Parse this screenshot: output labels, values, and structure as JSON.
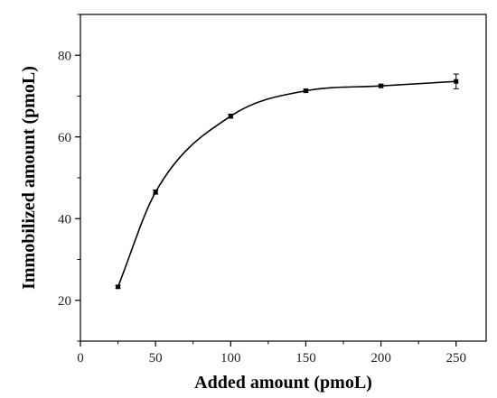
{
  "chart_data": {
    "type": "line",
    "xlabel": "Added amount (pmoL)",
    "ylabel": "Immobilized amount (pmoL)",
    "xlim": [
      0,
      270
    ],
    "ylim": [
      10,
      90
    ],
    "x_ticks": [
      0,
      50,
      100,
      150,
      200,
      250
    ],
    "y_ticks": [
      20,
      40,
      60,
      80
    ],
    "x_tick_labels": [
      "0",
      "50",
      "100",
      "150",
      "200",
      "250"
    ],
    "y_tick_labels": [
      "20",
      "40",
      "60",
      "80"
    ],
    "grid": false,
    "series": [
      {
        "x": [
          25,
          50,
          100,
          150,
          200,
          250
        ],
        "y": [
          23.3,
          46.5,
          65.1,
          71.3,
          72.5,
          73.6
        ],
        "error": [
          0.3,
          0.5,
          0.5,
          0.4,
          0.4,
          1.8
        ],
        "color": "#000000",
        "marker": "square"
      }
    ]
  }
}
